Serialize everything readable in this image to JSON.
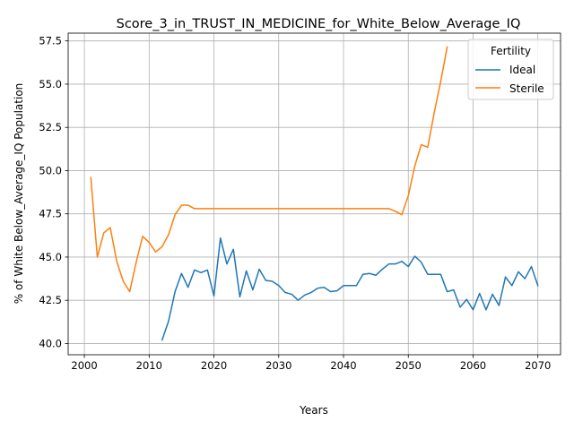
{
  "chart_data": {
    "type": "line",
    "title": "Score_3_in_TRUST_IN_MEDICINE_for_White_Below_Average_IQ",
    "xlabel": "Years",
    "ylabel": "% of White Below_Average_IQ Population",
    "xlim": [
      1997.5,
      2073.5
    ],
    "ylim": [
      39.35,
      57.95
    ],
    "xticks": [
      2000,
      2010,
      2020,
      2030,
      2040,
      2050,
      2060,
      2070
    ],
    "yticks": [
      40.0,
      42.5,
      45.0,
      47.5,
      50.0,
      52.5,
      55.0,
      57.5
    ],
    "xtick_labels": [
      "2000",
      "2010",
      "2020",
      "2030",
      "2040",
      "2050",
      "2060",
      "2070"
    ],
    "ytick_labels": [
      "40.0",
      "42.5",
      "45.0",
      "47.5",
      "50.0",
      "52.5",
      "55.0",
      "57.5"
    ],
    "grid": true,
    "legend": {
      "title": "Fertility",
      "position": "top-right"
    },
    "series": [
      {
        "name": "Ideal",
        "color": "#1f77b4",
        "x": [
          2012,
          2013,
          2014,
          2015,
          2016,
          2017,
          2018,
          2019,
          2020,
          2021,
          2022,
          2023,
          2024,
          2025,
          2026,
          2027,
          2028,
          2029,
          2030,
          2031,
          2032,
          2033,
          2034,
          2035,
          2036,
          2037,
          2038,
          2039,
          2040,
          2041,
          2042,
          2043,
          2044,
          2045,
          2046,
          2047,
          2048,
          2049,
          2050,
          2051,
          2052,
          2053,
          2054,
          2055,
          2056,
          2057,
          2058,
          2059,
          2060,
          2061,
          2062,
          2063,
          2064,
          2065,
          2066,
          2067,
          2068,
          2069,
          2070
        ],
        "y": [
          40.2,
          41.3,
          43.0,
          44.05,
          43.25,
          44.25,
          44.1,
          44.25,
          42.75,
          46.1,
          44.6,
          45.45,
          42.7,
          44.2,
          43.1,
          44.3,
          43.65,
          43.6,
          43.35,
          42.95,
          42.85,
          42.5,
          42.8,
          42.95,
          43.2,
          43.25,
          43.0,
          43.05,
          43.35,
          43.35,
          43.35,
          44.0,
          44.05,
          43.95,
          44.3,
          44.6,
          44.6,
          44.75,
          44.45,
          45.05,
          44.7,
          44.0,
          44.0,
          44.0,
          43.0,
          43.1,
          42.1,
          42.55,
          41.95,
          42.9,
          41.95,
          42.85,
          42.2,
          43.85,
          43.35,
          44.15,
          43.75,
          44.45,
          43.35
        ]
      },
      {
        "name": "Sterile",
        "color": "#ff7f0e",
        "x": [
          2001,
          2002,
          2003,
          2004,
          2005,
          2006,
          2007,
          2008,
          2009,
          2010,
          2011,
          2012,
          2013,
          2014,
          2015,
          2016,
          2017,
          2018,
          2019,
          2020,
          2021,
          2022,
          2023,
          2024,
          2025,
          2026,
          2027,
          2028,
          2029,
          2030,
          2031,
          2032,
          2033,
          2034,
          2035,
          2036,
          2037,
          2038,
          2039,
          2040,
          2041,
          2042,
          2043,
          2044,
          2045,
          2046,
          2047,
          2048,
          2049,
          2050,
          2051,
          2052,
          2053,
          2054,
          2055,
          2056
        ],
        "y": [
          49.6,
          45.0,
          46.4,
          46.7,
          44.75,
          43.6,
          43.0,
          44.7,
          46.2,
          45.85,
          45.3,
          45.6,
          46.3,
          47.45,
          48.0,
          48.0,
          47.8,
          47.8,
          47.8,
          47.8,
          47.8,
          47.8,
          47.8,
          47.8,
          47.8,
          47.8,
          47.8,
          47.8,
          47.8,
          47.8,
          47.8,
          47.8,
          47.8,
          47.8,
          47.8,
          47.8,
          47.8,
          47.8,
          47.8,
          47.8,
          47.8,
          47.8,
          47.8,
          47.8,
          47.8,
          47.8,
          47.8,
          47.65,
          47.45,
          48.55,
          50.25,
          51.5,
          51.35,
          53.35,
          55.15,
          57.15
        ]
      }
    ]
  }
}
